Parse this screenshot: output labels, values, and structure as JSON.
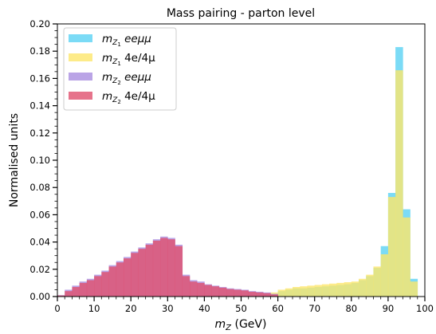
{
  "chart_data": {
    "type": "bar",
    "title": "Mass pairing - parton level",
    "xlabel_base": "m",
    "xlabel_sub": "Z",
    "xlabel_unit": " (GeV)",
    "ylabel": "Normalised units",
    "xlim": [
      0,
      100
    ],
    "ylim": [
      0,
      0.2
    ],
    "bin_width": 2,
    "x_ticks": [
      "0",
      "10",
      "20",
      "30",
      "40",
      "50",
      "60",
      "70",
      "80",
      "90",
      "100"
    ],
    "x_tick_values": [
      0,
      10,
      20,
      30,
      40,
      50,
      60,
      70,
      80,
      90,
      100
    ],
    "y_ticks": [
      "0.00",
      "0.02",
      "0.04",
      "0.06",
      "0.08",
      "0.10",
      "0.12",
      "0.14",
      "0.16",
      "0.18",
      "0.20"
    ],
    "y_tick_values": [
      0,
      0.02,
      0.04,
      0.06,
      0.08,
      0.1,
      0.12,
      0.14,
      0.16,
      0.18,
      0.2
    ],
    "legend_position": "top-left",
    "grid": false,
    "series": [
      {
        "name": "m_{Z_1} eeμμ",
        "legend_main": "m",
        "legend_sub": "Z",
        "legend_subsub": "1",
        "legend_rest": " eeμμ",
        "color": "#5ad2f4",
        "bin_starts": [
          58,
          60,
          62,
          64,
          66,
          68,
          70,
          72,
          74,
          76,
          78,
          80,
          82,
          84,
          86,
          88,
          90,
          92,
          94,
          96
        ],
        "values": [
          0.002,
          0.004,
          0.005,
          0.006,
          0.006,
          0.0065,
          0.007,
          0.0075,
          0.008,
          0.0085,
          0.009,
          0.01,
          0.012,
          0.015,
          0.021,
          0.037,
          0.076,
          0.183,
          0.064,
          0.013
        ]
      },
      {
        "name": "m_{Z_1} 4e/4μ",
        "legend_main": "m",
        "legend_sub": "Z",
        "legend_subsub": "1",
        "legend_rest": " 4e/4μ",
        "color": "#fde66b",
        "bin_starts": [
          58,
          60,
          62,
          64,
          66,
          68,
          70,
          72,
          74,
          76,
          78,
          80,
          82,
          84,
          86,
          88,
          90,
          92,
          94,
          96
        ],
        "values": [
          0.003,
          0.005,
          0.006,
          0.007,
          0.0075,
          0.008,
          0.0085,
          0.009,
          0.0095,
          0.01,
          0.0105,
          0.011,
          0.013,
          0.016,
          0.022,
          0.031,
          0.073,
          0.166,
          0.058,
          0.011
        ]
      },
      {
        "name": "m_{Z_2} eeμμ",
        "legend_main": "m",
        "legend_sub": "Z",
        "legend_subsub": "2",
        "legend_rest": " eeμμ",
        "color": "#a98de0",
        "bin_starts": [
          0,
          2,
          4,
          6,
          8,
          10,
          12,
          14,
          16,
          18,
          20,
          22,
          24,
          26,
          28,
          30,
          32,
          34,
          36,
          38,
          40,
          42,
          44,
          46,
          48,
          50,
          52,
          54,
          56,
          58
        ],
        "values": [
          0.001,
          0.005,
          0.008,
          0.011,
          0.013,
          0.016,
          0.019,
          0.023,
          0.026,
          0.029,
          0.033,
          0.036,
          0.039,
          0.042,
          0.044,
          0.043,
          0.038,
          0.016,
          0.012,
          0.011,
          0.009,
          0.008,
          0.007,
          0.006,
          0.0055,
          0.005,
          0.004,
          0.0035,
          0.003,
          0.002
        ]
      },
      {
        "name": "m_{Z_2} 4e/4μ",
        "legend_main": "m",
        "legend_sub": "Z",
        "legend_subsub": "2",
        "legend_rest": " 4e/4μ",
        "color": "#e0506e",
        "bin_starts": [
          0,
          2,
          4,
          6,
          8,
          10,
          12,
          14,
          16,
          18,
          20,
          22,
          24,
          26,
          28,
          30,
          32,
          34,
          36,
          38,
          40,
          42,
          44,
          46,
          48,
          50,
          52,
          54,
          56,
          58
        ],
        "values": [
          0.0008,
          0.004,
          0.007,
          0.01,
          0.012,
          0.015,
          0.018,
          0.022,
          0.025,
          0.028,
          0.032,
          0.035,
          0.038,
          0.041,
          0.043,
          0.042,
          0.037,
          0.015,
          0.011,
          0.01,
          0.0085,
          0.0075,
          0.0065,
          0.0055,
          0.005,
          0.0045,
          0.0035,
          0.003,
          0.0025,
          0.0015
        ]
      }
    ]
  }
}
